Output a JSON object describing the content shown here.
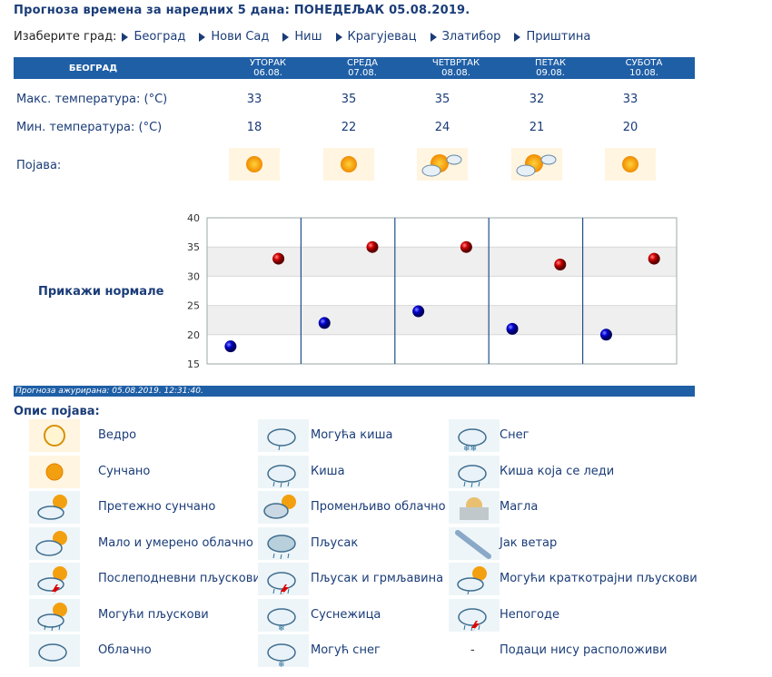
{
  "title": "Прогноза времена за наредних 5 дана: ПОНЕДЕЉАК  05.08.2019.",
  "city_select": {
    "label": "Изаберите град:",
    "cities": [
      "Београд",
      "Нови Сад",
      "Ниш",
      "Крагујевац",
      "Златибор",
      "Приштина"
    ]
  },
  "forecast": {
    "city": "БЕОГРАД",
    "days": [
      {
        "name": "УТОРАК",
        "date": "06.08.",
        "max": "33",
        "min": "18",
        "icon": "sunny-icon"
      },
      {
        "name": "СРЕДА",
        "date": "07.08.",
        "max": "35",
        "min": "22",
        "icon": "sunny-icon"
      },
      {
        "name": "ЧЕТВРТАК",
        "date": "08.08.",
        "max": "35",
        "min": "24",
        "icon": "mostly-sunny-icon"
      },
      {
        "name": "ПЕТАК",
        "date": "09.08.",
        "max": "32",
        "min": "21",
        "icon": "mostly-sunny-icon"
      },
      {
        "name": "СУБОТА",
        "date": "10.08.",
        "max": "33",
        "min": "20",
        "icon": "sunny-icon"
      }
    ],
    "max_label": "Макс. температура: (°C)",
    "min_label": "Мин. температура: (°C)",
    "phenomenon_label": "Појава:"
  },
  "chart_data": {
    "type": "scatter",
    "ylim": [
      15,
      40
    ],
    "yticks": [
      "15",
      "20",
      "25",
      "30",
      "35",
      "40"
    ],
    "series": [
      {
        "values": [
          33,
          35,
          35,
          32,
          33
        ],
        "color": "#cc0000"
      },
      {
        "values": [
          18,
          22,
          24,
          21,
          20
        ],
        "color": "#0000cc"
      }
    ],
    "grid": true
  },
  "normals_link": "Прикажи нормале",
  "updated": "Прогноза ажурирана:  05.08.2019. 12:31:40.",
  "legend": {
    "title": "Опис појава:",
    "items": [
      {
        "text": "Ведро",
        "icon": "clear-sky-icon"
      },
      {
        "text": "Сунчано",
        "icon": "sunny-icon"
      },
      {
        "text": "Претежно сунчано",
        "icon": "mostly-sunny-icon"
      },
      {
        "text": "Мало и умерено облачно",
        "icon": "partly-cloudy-icon"
      },
      {
        "text": "Послеподневни пљускови",
        "icon": "afternoon-showers-icon"
      },
      {
        "text": "Могући пљускови",
        "icon": "possible-showers-icon"
      },
      {
        "text": "Облачно",
        "icon": "cloudy-icon"
      },
      {
        "text": "Могућа киша",
        "icon": "possible-rain-icon"
      },
      {
        "text": "Киша",
        "icon": "rain-icon"
      },
      {
        "text": "Променљиво облачно",
        "icon": "variable-cloudy-icon"
      },
      {
        "text": "Пљусак",
        "icon": "shower-icon"
      },
      {
        "text": "Пљусак и грмљавина",
        "icon": "thunderstorm-icon"
      },
      {
        "text": "Суснежица",
        "icon": "sleet-icon"
      },
      {
        "text": "Могућ снег",
        "icon": "possible-snow-icon"
      },
      {
        "text": "Снег",
        "icon": "snow-icon"
      },
      {
        "text": "Киша која се леди",
        "icon": "freezing-rain-icon"
      },
      {
        "text": "Магла",
        "icon": "fog-icon"
      },
      {
        "text": "Јак ветар",
        "icon": "strong-wind-icon"
      },
      {
        "text": "Могући краткотрајни пљускови",
        "icon": "possible-brief-showers-icon"
      },
      {
        "text": "Непогоде",
        "icon": "storm-icon"
      },
      {
        "text": "Подаци нису расположиви",
        "icon": "no-data-icon",
        "symbol": "-"
      }
    ]
  }
}
